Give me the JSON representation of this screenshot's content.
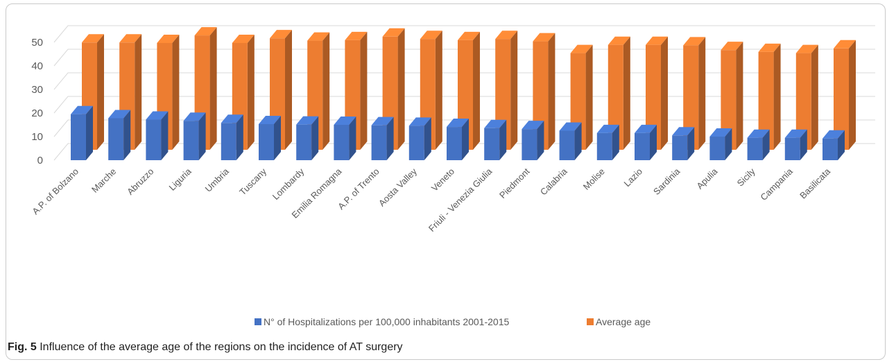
{
  "chart_data": {
    "type": "bar",
    "style": "3d-clustered-column",
    "categories": [
      "A.P. of Bolzano",
      "Marche",
      "Abruzzo",
      "Liguria",
      "Umbria",
      "Tuscany",
      "Lombardy",
      "Emilia Romagna",
      "A.P. of Trento",
      "Aosta Valley",
      "Veneto",
      "Friuli - Venezia Giulia",
      "Piedmont",
      "Calabria",
      "Molise",
      "Lazio",
      "Sardinia",
      "Apulia",
      "Sicily",
      "Campania",
      "Basilicata"
    ],
    "series": [
      {
        "name": "N° of Hospitalizations per  100,000 inhabitants 2001-2015",
        "color": "#4472c4",
        "values": [
          19.5,
          17.8,
          17.2,
          16.7,
          15.8,
          15.3,
          15.1,
          15.0,
          14.8,
          14.6,
          14.1,
          13.6,
          13.2,
          12.5,
          11.5,
          11.5,
          10.5,
          10.0,
          9.5,
          9.5,
          9.2
        ]
      },
      {
        "name": "Average age",
        "color": "#ed7d31",
        "values": [
          45.5,
          45.5,
          45.3,
          48.5,
          45.3,
          47.3,
          46.3,
          46.5,
          48.0,
          47.0,
          46.5,
          47.0,
          46.0,
          41.0,
          44.5,
          44.5,
          44.3,
          42.3,
          41.5,
          41.0,
          43.0
        ]
      }
    ],
    "yticks": [
      0,
      10,
      20,
      30,
      40,
      50
    ],
    "ylim": [
      0,
      55
    ],
    "grid": true,
    "legend_position": "bottom"
  },
  "caption": {
    "label": "Fig. 5",
    "text": " Influence of the average age of the regions on the incidence of AT surgery"
  }
}
